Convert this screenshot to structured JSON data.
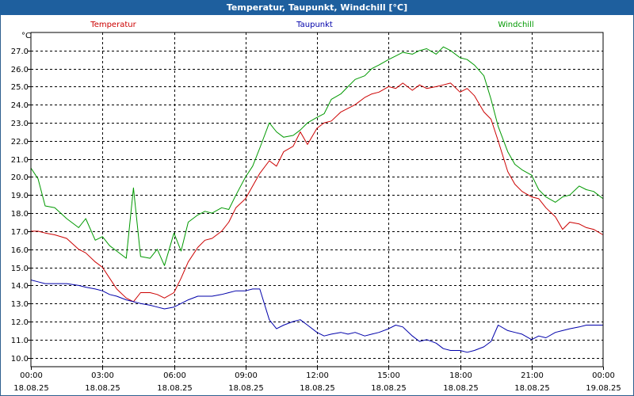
{
  "window": {
    "title": "Temperatur, Taupunkt, Windchill [°C]"
  },
  "chart_data": {
    "type": "line",
    "title": "Temperatur, Taupunkt, Windchill [°C]",
    "ylabel": "°C",
    "xlabel": "",
    "ylim": [
      9.5,
      28.0
    ],
    "xlim": [
      0,
      24
    ],
    "grid": true,
    "legend": "top",
    "y_ticks": [
      10.0,
      11.0,
      12.0,
      13.0,
      14.0,
      15.0,
      16.0,
      17.0,
      18.0,
      19.0,
      20.0,
      21.0,
      22.0,
      23.0,
      24.0,
      25.0,
      26.0,
      27.0
    ],
    "x_ticks": [
      {
        "hour": 0,
        "time": "00:00",
        "date": "18.08.25"
      },
      {
        "hour": 3,
        "time": "03:00",
        "date": "18.08.25"
      },
      {
        "hour": 6,
        "time": "06:00",
        "date": "18.08.25"
      },
      {
        "hour": 9,
        "time": "09:00",
        "date": "18.08.25"
      },
      {
        "hour": 12,
        "time": "12:00",
        "date": "18.08.25"
      },
      {
        "hour": 15,
        "time": "15:00",
        "date": "18.08.25"
      },
      {
        "hour": 18,
        "time": "18:00",
        "date": "18.08.25"
      },
      {
        "hour": 21,
        "time": "21:00",
        "date": "18.08.25"
      },
      {
        "hour": 24,
        "time": "00:00",
        "date": "19.08.25"
      }
    ],
    "series": [
      {
        "name": "Temperatur",
        "color": "#cc0000",
        "x": [
          0,
          0.3,
          0.6,
          1,
          1.5,
          2,
          2.3,
          2.7,
          3,
          3.3,
          3.6,
          4,
          4.3,
          4.6,
          5,
          5.3,
          5.6,
          6,
          6.3,
          6.6,
          7,
          7.3,
          7.6,
          8,
          8.3,
          8.6,
          9,
          9.3,
          9.6,
          10,
          10.3,
          10.6,
          11,
          11.3,
          11.6,
          12,
          12.3,
          12.6,
          13,
          13.3,
          13.6,
          14,
          14.3,
          14.6,
          15,
          15.3,
          15.6,
          16,
          16.3,
          16.6,
          17,
          17.3,
          17.6,
          18,
          18.3,
          18.6,
          19,
          19.3,
          19.6,
          20,
          20.3,
          20.6,
          21,
          21.3,
          21.6,
          22,
          22.3,
          22.6,
          23,
          23.3,
          23.6,
          24
        ],
        "values": [
          17.0,
          17.0,
          16.9,
          16.8,
          16.6,
          16.0,
          15.8,
          15.3,
          15.0,
          14.4,
          13.8,
          13.3,
          13.1,
          13.6,
          13.6,
          13.5,
          13.3,
          13.6,
          14.4,
          15.3,
          16.1,
          16.5,
          16.6,
          17.0,
          17.5,
          18.3,
          18.8,
          19.5,
          20.2,
          20.9,
          20.6,
          21.4,
          21.7,
          22.5,
          21.8,
          22.7,
          23.0,
          23.1,
          23.6,
          23.8,
          24.0,
          24.4,
          24.6,
          24.7,
          25.0,
          24.9,
          25.2,
          24.8,
          25.1,
          24.9,
          25.0,
          25.1,
          25.2,
          24.7,
          24.9,
          24.5,
          23.6,
          23.2,
          22.0,
          20.3,
          19.6,
          19.2,
          18.9,
          18.8,
          18.3,
          17.8,
          17.1,
          17.5,
          17.4,
          17.2,
          17.1,
          16.8
        ]
      },
      {
        "name": "Taupunkt",
        "color": "#0000aa",
        "x": [
          0,
          0.3,
          0.6,
          1,
          1.5,
          2,
          2.3,
          2.7,
          3,
          3.3,
          3.6,
          4,
          4.3,
          4.6,
          5,
          5.3,
          5.6,
          6,
          6.3,
          6.6,
          7,
          7.3,
          7.6,
          8,
          8.3,
          8.6,
          9,
          9.3,
          9.6,
          10,
          10.3,
          10.6,
          11,
          11.3,
          11.6,
          12,
          12.3,
          12.6,
          13,
          13.3,
          13.6,
          14,
          14.3,
          14.6,
          15,
          15.3,
          15.6,
          16,
          16.3,
          16.6,
          17,
          17.3,
          17.6,
          18,
          18.3,
          18.6,
          19,
          19.3,
          19.6,
          20,
          20.3,
          20.6,
          21,
          21.3,
          21.6,
          22,
          22.3,
          22.6,
          23,
          23.3,
          23.6,
          24
        ],
        "values": [
          14.3,
          14.2,
          14.1,
          14.1,
          14.1,
          14.0,
          13.9,
          13.8,
          13.7,
          13.5,
          13.4,
          13.2,
          13.1,
          13.0,
          12.9,
          12.8,
          12.7,
          12.8,
          13.0,
          13.2,
          13.4,
          13.4,
          13.4,
          13.5,
          13.6,
          13.7,
          13.7,
          13.8,
          13.8,
          12.1,
          11.6,
          11.8,
          12.0,
          12.1,
          11.8,
          11.4,
          11.2,
          11.3,
          11.4,
          11.3,
          11.4,
          11.2,
          11.3,
          11.4,
          11.6,
          11.8,
          11.7,
          11.2,
          10.9,
          11.0,
          10.8,
          10.5,
          10.4,
          10.4,
          10.3,
          10.4,
          10.6,
          10.9,
          11.8,
          11.5,
          11.4,
          11.3,
          11.0,
          11.2,
          11.1,
          11.4,
          11.5,
          11.6,
          11.7,
          11.8,
          11.8,
          11.8
        ]
      },
      {
        "name": "Windchill",
        "color": "#009900",
        "x": [
          0,
          0.3,
          0.6,
          1,
          1.5,
          2,
          2.3,
          2.7,
          3,
          3.3,
          3.6,
          4,
          4.3,
          4.6,
          5,
          5.3,
          5.6,
          6,
          6.3,
          6.6,
          7,
          7.3,
          7.6,
          8,
          8.3,
          8.6,
          9,
          9.3,
          9.6,
          10,
          10.3,
          10.6,
          11,
          11.3,
          11.6,
          12,
          12.3,
          12.6,
          13,
          13.3,
          13.6,
          14,
          14.3,
          14.6,
          15,
          15.3,
          15.6,
          16,
          16.3,
          16.6,
          17,
          17.3,
          17.6,
          18,
          18.3,
          18.6,
          19,
          19.3,
          19.6,
          20,
          20.3,
          20.6,
          21,
          21.3,
          21.6,
          22,
          22.3,
          22.6,
          23,
          23.3,
          23.6,
          24
        ],
        "values": [
          20.5,
          19.9,
          18.4,
          18.3,
          17.7,
          17.2,
          17.7,
          16.5,
          16.7,
          16.2,
          15.9,
          15.5,
          19.4,
          15.6,
          15.5,
          16.0,
          15.1,
          16.9,
          15.9,
          17.5,
          17.9,
          18.1,
          18.0,
          18.3,
          18.2,
          19.0,
          20.0,
          20.6,
          21.6,
          23.0,
          22.5,
          22.2,
          22.3,
          22.6,
          23.0,
          23.3,
          23.5,
          24.3,
          24.6,
          25.0,
          25.4,
          25.6,
          26.0,
          26.2,
          26.5,
          26.7,
          26.9,
          26.8,
          27.0,
          27.1,
          26.8,
          27.2,
          27.0,
          26.6,
          26.5,
          26.2,
          25.6,
          24.3,
          22.8,
          21.4,
          20.7,
          20.4,
          20.1,
          19.3,
          18.9,
          18.6,
          18.9,
          19.0,
          19.5,
          19.3,
          19.2,
          18.8
        ]
      }
    ]
  }
}
